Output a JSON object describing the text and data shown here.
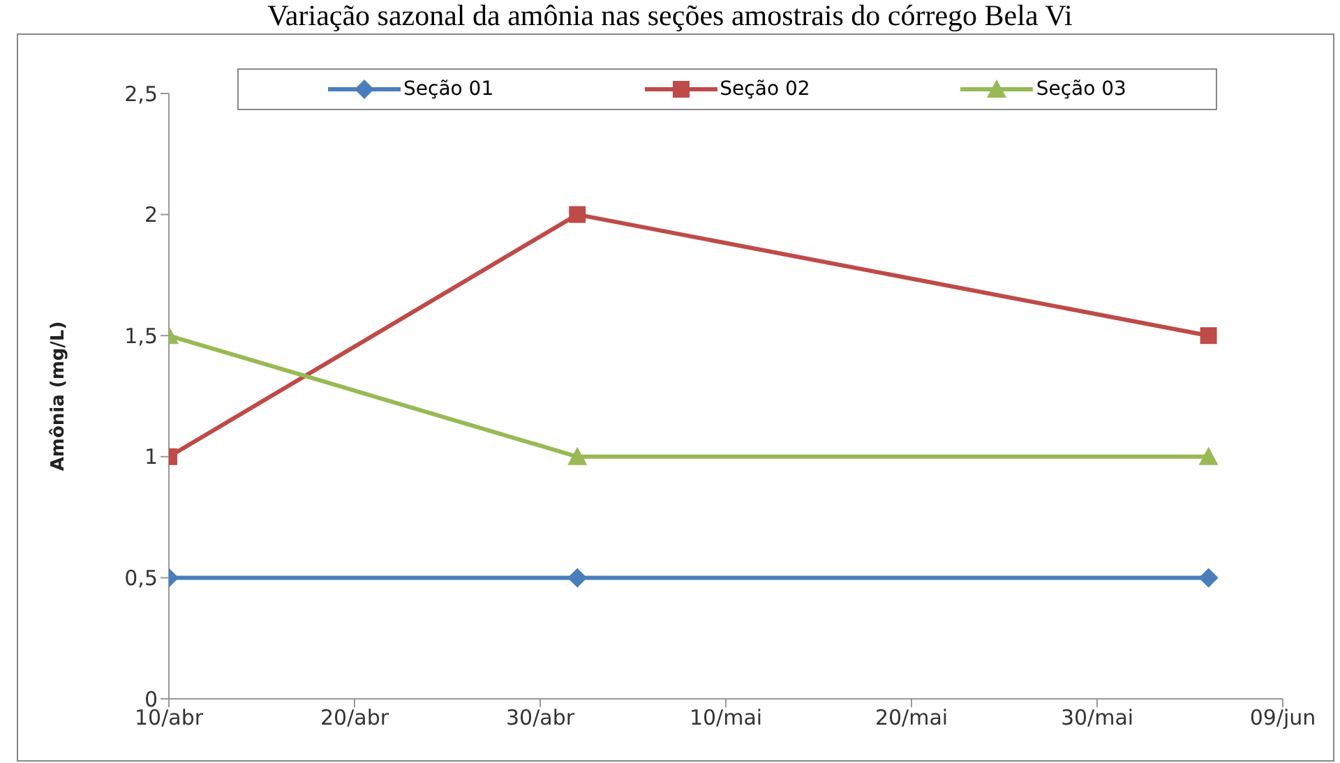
{
  "chart_data": {
    "type": "line",
    "title": "Variação sazonal da amônia nas seções amostrais do córrego Bela Vi",
    "ylabel": "Amônia (mg/L)",
    "x": [
      "--04-10",
      "--05-02",
      "--06-05"
    ],
    "series": [
      {
        "name": "Seção 01",
        "color": "#4a7ebb",
        "marker": "diamond",
        "values": [
          0.5,
          0.5,
          0.5
        ]
      },
      {
        "name": "Seção 02",
        "color": "#be4b48",
        "marker": "square",
        "values": [
          1,
          2,
          1.5
        ]
      },
      {
        "name": "Seção 03",
        "color": "#98b954",
        "marker": "triangle",
        "values": [
          1.5,
          1,
          1
        ]
      }
    ],
    "xlim": [
      "--04-10",
      "--06-09"
    ],
    "xticks": [
      {
        "value": "--04-10",
        "label": "10/abr"
      },
      {
        "value": "--04-20",
        "label": "20/abr"
      },
      {
        "value": "--04-30",
        "label": "30/abr"
      },
      {
        "value": "--05-10",
        "label": "10/mai"
      },
      {
        "value": "--05-20",
        "label": "20/mai"
      },
      {
        "value": "--05-30",
        "label": "30/mai"
      },
      {
        "value": "--06-09",
        "label": "09/jun"
      }
    ],
    "ylim": [
      0,
      2.5
    ],
    "yticks": [
      0,
      {
        "value": 0.5,
        "label": "0,5"
      },
      1,
      {
        "value": 1.5,
        "label": "1,5"
      },
      2,
      {
        "value": 2.5,
        "label": "2,5"
      }
    ],
    "grid": false,
    "legend": "top",
    "line_style": "solid"
  }
}
